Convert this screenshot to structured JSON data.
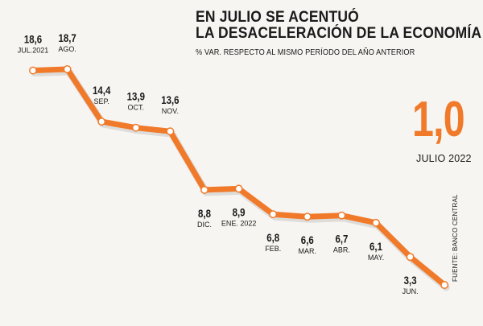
{
  "title_line1": "EN JULIO SE ACENTUÓ",
  "title_line2": "LA DESACELERACIÓN DE LA ECONOMÍA",
  "subtitle": "% VAR. RESPECTO AL MISMO PERÍODO DEL AÑO ANTERIOR",
  "highlight": {
    "value": "1,0",
    "label": "JULIO 2022"
  },
  "source": "FUENTE: BANCO CENTRAL",
  "colors": {
    "line": "#f07a2a",
    "marker_fill": "#ffffff",
    "background": "#f6f5f2",
    "text": "#1a1a1a"
  },
  "chart_data": {
    "type": "line",
    "title": "EN JULIO SE ACENTUÓ LA DESACELERACIÓN DE LA ECONOMÍA",
    "subtitle": "% VAR. RESPECTO AL MISMO PERÍODO DEL AÑO ANTERIOR",
    "categories": [
      "JUL.2021",
      "AGO.",
      "SEP.",
      "OCT.",
      "NOV.",
      "DIC.",
      "ENE. 2022",
      "FEB.",
      "MAR.",
      "ABR.",
      "MAY.",
      "JUN.",
      "JULIO 2022"
    ],
    "values": [
      18.6,
      18.7,
      14.4,
      13.9,
      13.6,
      8.8,
      8.9,
      6.8,
      6.6,
      6.7,
      6.1,
      3.3,
      1.0
    ],
    "value_labels": [
      "18,6",
      "18,7",
      "14,4",
      "13,9",
      "13,6",
      "8,8",
      "8,9",
      "6,8",
      "6,6",
      "6,7",
      "6,1",
      "3,3",
      "1,0"
    ],
    "label_position": [
      "above",
      "above",
      "above",
      "above",
      "above",
      "below",
      "below",
      "below",
      "below",
      "below",
      "below",
      "below",
      "none"
    ],
    "ylim": [
      1.0,
      18.7
    ],
    "grid": false,
    "legend": "none"
  }
}
